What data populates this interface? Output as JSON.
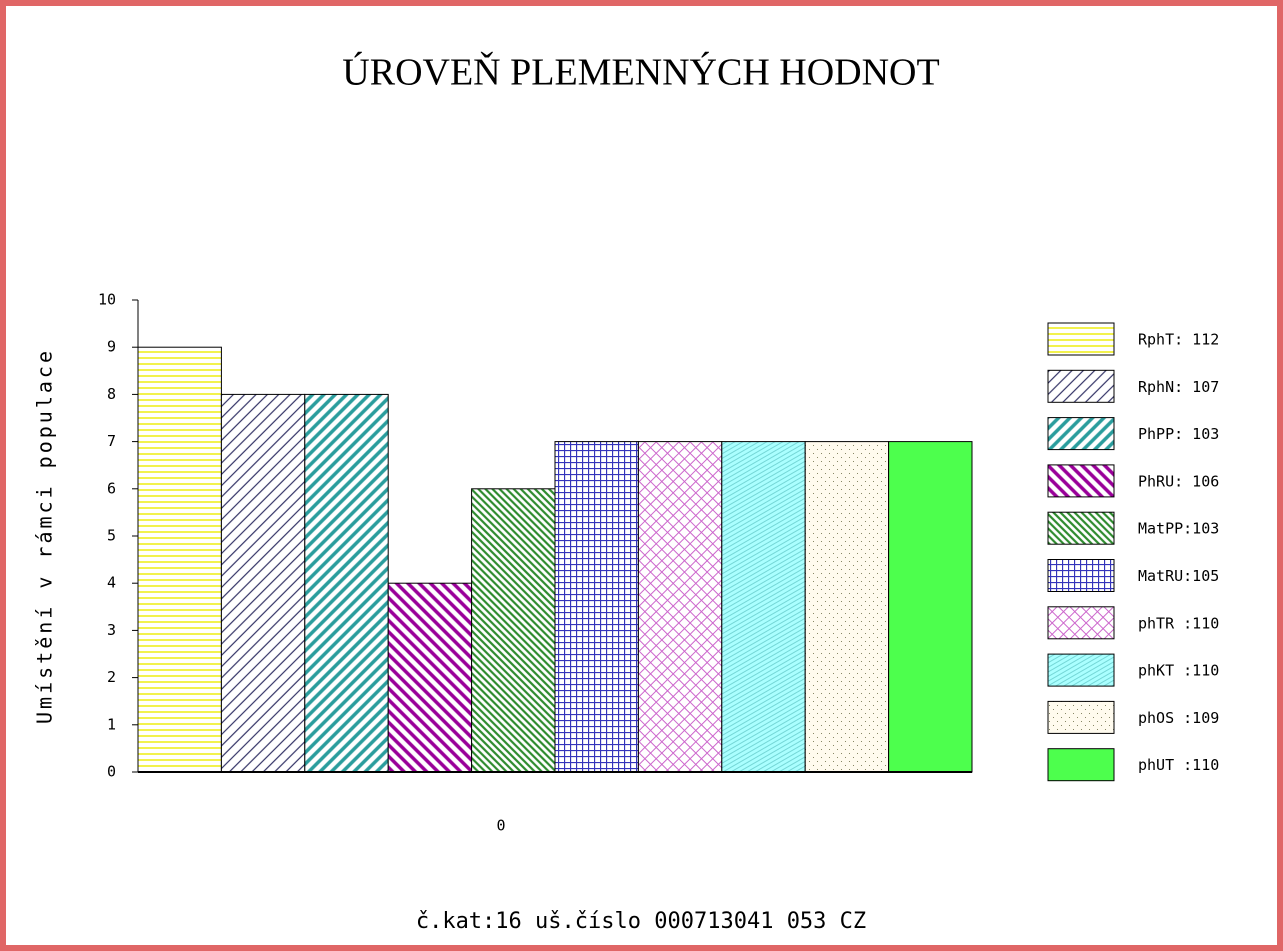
{
  "chart_data": {
    "type": "bar",
    "title": "ÚROVEŇ PLEMENNÝCH HODNOT",
    "y_label": "Umístění v rámci populace",
    "caption": "č.kat:16 uš.číslo 000713041 053 CZ",
    "categories": [
      "0"
    ],
    "ylim": [
      0,
      10
    ],
    "yticks": [
      0,
      1,
      2,
      3,
      4,
      5,
      6,
      7,
      8,
      9,
      10
    ],
    "series": [
      {
        "name": "RphT: 112",
        "color": "#f2f24d",
        "pattern": "hlines",
        "values": [
          9
        ]
      },
      {
        "name": "RphN: 107",
        "color": "#333366",
        "pattern": "fwd",
        "values": [
          8
        ]
      },
      {
        "name": "PhPP: 103",
        "color": "#2a9d9d",
        "pattern": "fwd-bold",
        "values": [
          8
        ]
      },
      {
        "name": "PhRU: 106",
        "color": "#990099",
        "pattern": "back-bold",
        "values": [
          4
        ]
      },
      {
        "name": "MatPP:103",
        "color": "#2e8b2e",
        "pattern": "back",
        "values": [
          6
        ]
      },
      {
        "name": "MatRU:105",
        "color": "#3333bb",
        "pattern": "grid",
        "values": [
          7
        ]
      },
      {
        "name": "phTR :110",
        "color": "#cc66cc",
        "pattern": "cross",
        "values": [
          7
        ]
      },
      {
        "name": "phKT :110",
        "color": "#66dddd",
        "pattern": "fine",
        "values": [
          7
        ]
      },
      {
        "name": "phOS :109",
        "color": "#888866",
        "pattern": "dots",
        "values": [
          7
        ]
      },
      {
        "name": "phUT :110",
        "color": "#4dff4d",
        "pattern": "solid",
        "values": [
          7
        ]
      }
    ]
  }
}
